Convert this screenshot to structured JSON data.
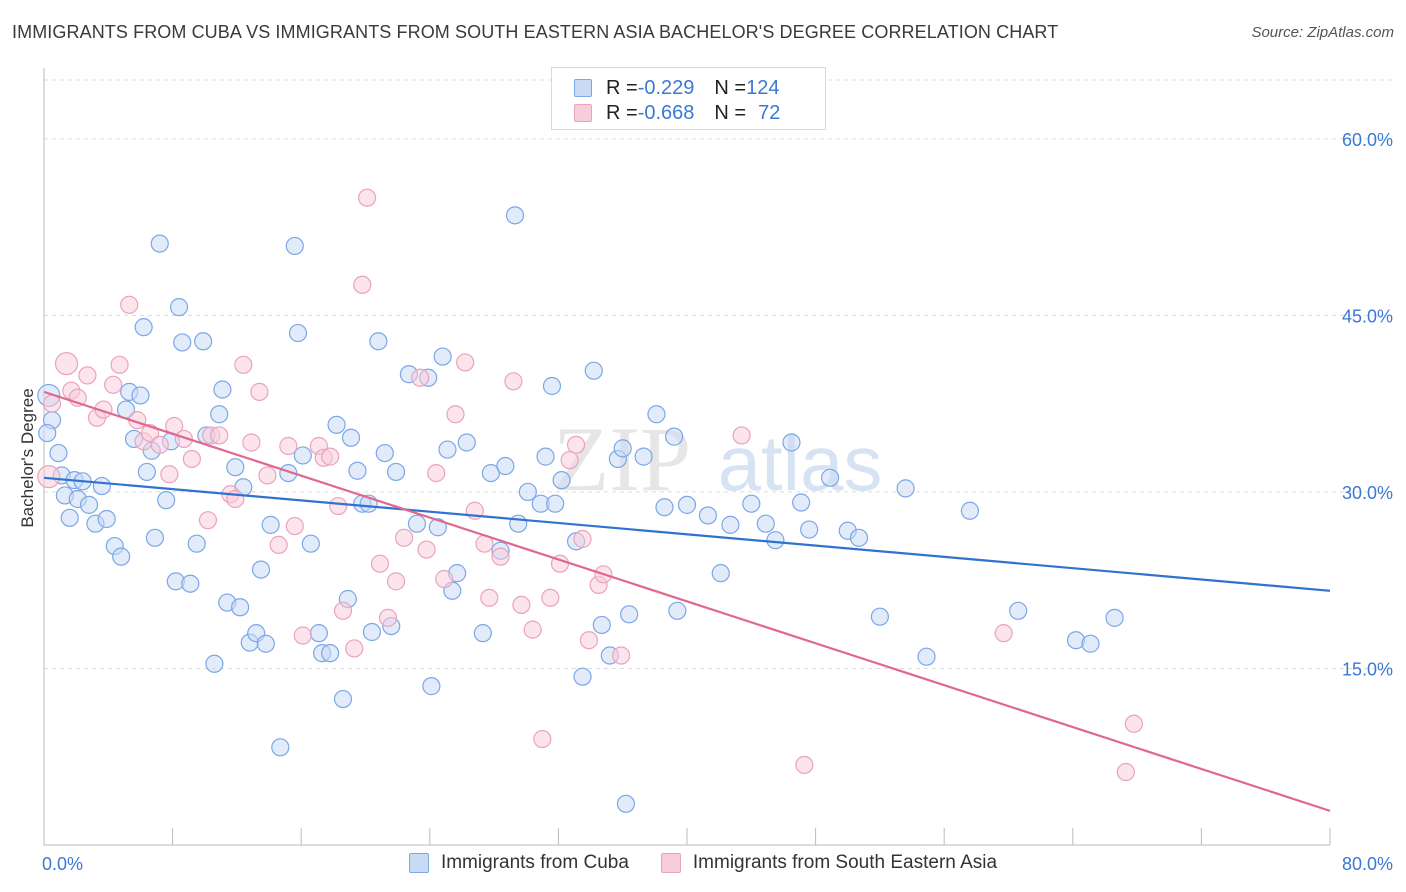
{
  "title": "IMMIGRANTS FROM CUBA VS IMMIGRANTS FROM SOUTH EASTERN ASIA BACHELOR'S DEGREE CORRELATION CHART",
  "source": "Source: ZipAtlas.com",
  "watermark": {
    "zip": "ZIP",
    "atlas": "atlas"
  },
  "legend_top": {
    "rows": [
      {
        "r_label": "R = ",
        "r_value": "-0.229",
        "n_label": "N = ",
        "n_value": "124"
      },
      {
        "r_label": "R = ",
        "r_value": "-0.668",
        "n_label": "N = ",
        "n_value": "72"
      }
    ]
  },
  "chart_data": {
    "type": "scatter",
    "ylabel": "Bachelor's Degree",
    "xlabel": "",
    "xlim": [
      0,
      80
    ],
    "ylim": [
      0,
      65
    ],
    "x_tick_labels": [
      {
        "value": 0,
        "label": "0.0%"
      },
      {
        "value": 80,
        "label": "80.0%"
      }
    ],
    "y_tick_labels": [
      {
        "value": 15,
        "label": "15.0%"
      },
      {
        "value": 30,
        "label": "30.0%"
      },
      {
        "value": 45,
        "label": "45.0%"
      },
      {
        "value": 60,
        "label": "60.0%"
      }
    ],
    "grid": true,
    "legend_position": "bottom",
    "series": [
      {
        "name": "Immigrants from Cuba",
        "color": "#7ba7e6",
        "fill": "#c9daf5",
        "line_color": "#2f72d0",
        "trend": [
          [
            0,
            31.2
          ],
          [
            80,
            21.6
          ]
        ],
        "points": [
          [
            0.3,
            38.2
          ],
          [
            0.5,
            36.1
          ],
          [
            0.9,
            33.3
          ],
          [
            1.1,
            31.4
          ],
          [
            1.3,
            29.7
          ],
          [
            1.6,
            27.8
          ],
          [
            1.9,
            31.0
          ],
          [
            2.1,
            29.4
          ],
          [
            2.4,
            30.9
          ],
          [
            2.8,
            28.9
          ],
          [
            3.2,
            27.3
          ],
          [
            3.6,
            30.5
          ],
          [
            3.9,
            27.7
          ],
          [
            4.4,
            25.4
          ],
          [
            4.8,
            24.5
          ],
          [
            5.3,
            38.5
          ],
          [
            5.1,
            37.0
          ],
          [
            5.6,
            34.5
          ],
          [
            6.2,
            44.0
          ],
          [
            6.4,
            31.7
          ],
          [
            6.7,
            33.5
          ],
          [
            6.9,
            26.1
          ],
          [
            7.2,
            51.1
          ],
          [
            7.6,
            29.3
          ],
          [
            7.9,
            34.3
          ],
          [
            8.2,
            22.4
          ],
          [
            8.4,
            45.7
          ],
          [
            8.6,
            42.7
          ],
          [
            9.1,
            22.2
          ],
          [
            9.5,
            25.6
          ],
          [
            9.9,
            42.8
          ],
          [
            10.1,
            34.8
          ],
          [
            10.6,
            15.4
          ],
          [
            10.9,
            36.6
          ],
          [
            11.1,
            38.7
          ],
          [
            11.4,
            20.6
          ],
          [
            11.9,
            32.1
          ],
          [
            12.2,
            20.2
          ],
          [
            12.4,
            30.4
          ],
          [
            12.8,
            17.2
          ],
          [
            13.2,
            18.0
          ],
          [
            13.5,
            23.4
          ],
          [
            13.8,
            17.1
          ],
          [
            14.1,
            27.2
          ],
          [
            14.7,
            8.3
          ],
          [
            15.2,
            31.6
          ],
          [
            15.6,
            50.9
          ],
          [
            15.8,
            43.5
          ],
          [
            16.1,
            33.1
          ],
          [
            16.6,
            25.6
          ],
          [
            17.1,
            18.0
          ],
          [
            17.3,
            16.3
          ],
          [
            17.8,
            16.3
          ],
          [
            18.2,
            35.7
          ],
          [
            18.6,
            12.4
          ],
          [
            18.9,
            20.9
          ],
          [
            19.1,
            34.6
          ],
          [
            19.5,
            31.8
          ],
          [
            19.8,
            29.0
          ],
          [
            20.2,
            29.0
          ],
          [
            20.4,
            18.1
          ],
          [
            20.8,
            42.8
          ],
          [
            21.2,
            33.3
          ],
          [
            21.6,
            18.6
          ],
          [
            21.9,
            31.7
          ],
          [
            22.7,
            40.0
          ],
          [
            23.2,
            27.3
          ],
          [
            23.9,
            39.7
          ],
          [
            24.1,
            13.5
          ],
          [
            24.5,
            27.0
          ],
          [
            24.8,
            41.5
          ],
          [
            25.1,
            33.6
          ],
          [
            25.4,
            21.6
          ],
          [
            25.7,
            23.1
          ],
          [
            26.3,
            34.2
          ],
          [
            27.3,
            18.0
          ],
          [
            27.8,
            31.6
          ],
          [
            28.4,
            25.0
          ],
          [
            28.7,
            32.2
          ],
          [
            29.3,
            53.5
          ],
          [
            29.5,
            27.3
          ],
          [
            30.1,
            30.0
          ],
          [
            30.9,
            29.0
          ],
          [
            31.2,
            33.0
          ],
          [
            31.6,
            39.0
          ],
          [
            31.8,
            29.0
          ],
          [
            32.2,
            31.0
          ],
          [
            33.1,
            25.8
          ],
          [
            33.5,
            14.3
          ],
          [
            34.2,
            40.3
          ],
          [
            34.7,
            18.7
          ],
          [
            35.2,
            16.1
          ],
          [
            35.7,
            32.8
          ],
          [
            36.0,
            33.7
          ],
          [
            36.4,
            19.6
          ],
          [
            36.2,
            3.5
          ],
          [
            37.3,
            33.0
          ],
          [
            38.1,
            36.6
          ],
          [
            38.6,
            28.7
          ],
          [
            39.2,
            34.7
          ],
          [
            39.4,
            19.9
          ],
          [
            40.0,
            28.9
          ],
          [
            41.3,
            28.0
          ],
          [
            42.1,
            23.1
          ],
          [
            42.7,
            27.2
          ],
          [
            44.0,
            29.0
          ],
          [
            44.9,
            27.3
          ],
          [
            45.5,
            25.9
          ],
          [
            46.5,
            34.2
          ],
          [
            47.1,
            29.1
          ],
          [
            47.6,
            26.8
          ],
          [
            48.9,
            31.2
          ],
          [
            50.0,
            26.7
          ],
          [
            50.7,
            26.1
          ],
          [
            52.0,
            19.4
          ],
          [
            53.6,
            30.3
          ],
          [
            54.9,
            16.0
          ],
          [
            57.6,
            28.4
          ],
          [
            60.6,
            19.9
          ],
          [
            64.2,
            17.4
          ],
          [
            65.1,
            17.1
          ],
          [
            66.6,
            19.3
          ],
          [
            0.2,
            35.0
          ],
          [
            6.0,
            38.2
          ]
        ]
      },
      {
        "name": "Immigrants from South Eastern Asia",
        "color": "#eba3bc",
        "fill": "#f7cdda",
        "line_color": "#e0678f",
        "trend": [
          [
            0,
            38.5
          ],
          [
            80,
            2.9
          ]
        ],
        "points": [
          [
            0.3,
            31.3
          ],
          [
            0.5,
            37.5
          ],
          [
            1.4,
            40.9
          ],
          [
            1.7,
            38.6
          ],
          [
            2.1,
            38.0
          ],
          [
            2.7,
            39.9
          ],
          [
            3.3,
            36.3
          ],
          [
            3.7,
            37.0
          ],
          [
            4.3,
            39.1
          ],
          [
            4.7,
            40.8
          ],
          [
            5.3,
            45.9
          ],
          [
            5.8,
            36.1
          ],
          [
            6.2,
            34.3
          ],
          [
            6.6,
            35.0
          ],
          [
            7.2,
            34.0
          ],
          [
            7.8,
            31.5
          ],
          [
            8.1,
            35.6
          ],
          [
            8.7,
            34.5
          ],
          [
            9.2,
            32.8
          ],
          [
            10.2,
            27.6
          ],
          [
            10.4,
            34.8
          ],
          [
            10.9,
            34.8
          ],
          [
            11.6,
            29.8
          ],
          [
            11.9,
            29.4
          ],
          [
            12.4,
            40.8
          ],
          [
            12.9,
            34.2
          ],
          [
            13.4,
            38.5
          ],
          [
            13.9,
            31.4
          ],
          [
            14.6,
            25.5
          ],
          [
            15.2,
            33.9
          ],
          [
            15.6,
            27.1
          ],
          [
            16.1,
            17.8
          ],
          [
            17.1,
            33.9
          ],
          [
            17.4,
            32.9
          ],
          [
            17.8,
            33.0
          ],
          [
            18.3,
            28.8
          ],
          [
            18.6,
            19.9
          ],
          [
            19.3,
            16.7
          ],
          [
            19.8,
            47.6
          ],
          [
            20.1,
            55.0
          ],
          [
            20.9,
            23.9
          ],
          [
            21.4,
            19.3
          ],
          [
            21.9,
            22.4
          ],
          [
            22.4,
            26.1
          ],
          [
            23.4,
            39.7
          ],
          [
            23.8,
            25.1
          ],
          [
            24.4,
            31.6
          ],
          [
            24.9,
            22.6
          ],
          [
            25.6,
            36.6
          ],
          [
            26.2,
            41.0
          ],
          [
            26.8,
            28.4
          ],
          [
            27.4,
            25.6
          ],
          [
            27.7,
            21.0
          ],
          [
            28.4,
            24.5
          ],
          [
            29.2,
            39.4
          ],
          [
            29.7,
            20.4
          ],
          [
            30.4,
            18.3
          ],
          [
            31.0,
            9.0
          ],
          [
            31.5,
            21.0
          ],
          [
            32.1,
            23.9
          ],
          [
            33.1,
            34.0
          ],
          [
            32.7,
            32.7
          ],
          [
            33.5,
            26.0
          ],
          [
            33.9,
            17.4
          ],
          [
            34.5,
            22.1
          ],
          [
            34.8,
            23.0
          ],
          [
            35.9,
            16.1
          ],
          [
            43.4,
            34.8
          ],
          [
            47.3,
            6.8
          ],
          [
            59.7,
            18.0
          ],
          [
            67.3,
            6.2
          ],
          [
            67.8,
            10.3
          ]
        ]
      }
    ]
  }
}
